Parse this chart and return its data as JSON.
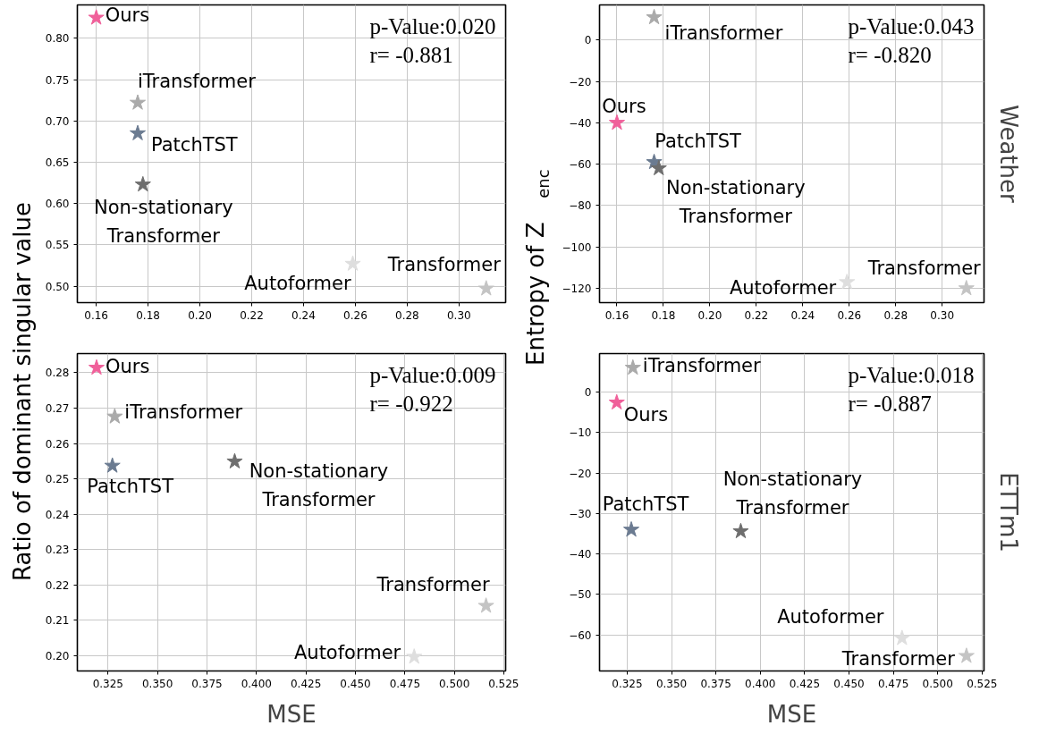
{
  "chart_data": [
    {
      "type": "scatter",
      "marker": "star",
      "grid": true,
      "ylabel": "Ratio of dominant singular value",
      "xlim": [
        0.1527,
        0.318
      ],
      "ylim": [
        0.48,
        0.8405
      ],
      "xticks": [
        {
          "value": 0.16,
          "label": "0.16"
        },
        {
          "value": 0.18,
          "label": "0.18"
        },
        {
          "value": 0.2,
          "label": "0.20"
        },
        {
          "value": 0.22,
          "label": "0.22"
        },
        {
          "value": 0.24,
          "label": "0.24"
        },
        {
          "value": 0.26,
          "label": "0.26"
        },
        {
          "value": 0.28,
          "label": "0.28"
        },
        {
          "value": 0.3,
          "label": "0.30"
        }
      ],
      "yticks": [
        {
          "value": 0.5,
          "label": "0.50"
        },
        {
          "value": 0.55,
          "label": "0.55"
        },
        {
          "value": 0.6,
          "label": "0.60"
        },
        {
          "value": 0.65,
          "label": "0.65"
        },
        {
          "value": 0.7,
          "label": "0.70"
        },
        {
          "value": 0.75,
          "label": "0.75"
        },
        {
          "value": 0.8,
          "label": "0.80"
        }
      ],
      "annotations": [
        "p-Value:0.020",
        "r= -0.881"
      ],
      "series": [
        {
          "name": "Ours",
          "color": "#f0609a",
          "x": [
            0.16
          ],
          "values": [
            0.825
          ]
        },
        {
          "name": "iTransformer",
          "color": "#aaaaaa",
          "x": [
            0.176
          ],
          "values": [
            0.722
          ]
        },
        {
          "name": "PatchTST",
          "color": "#6b7b91",
          "x": [
            0.176
          ],
          "values": [
            0.685
          ]
        },
        {
          "name": "Non-stationary\nTransformer",
          "color": "#6e6e6e",
          "x": [
            0.178
          ],
          "values": [
            0.623
          ]
        },
        {
          "name": "Autoformer",
          "color": "#dedede",
          "x": [
            0.259
          ],
          "values": [
            0.527
          ]
        },
        {
          "name": "Transformer",
          "color": "#c4c4c4",
          "x": [
            0.3105
          ],
          "values": [
            0.497
          ]
        }
      ]
    },
    {
      "type": "scatter",
      "marker": "star",
      "grid": true,
      "ylabel": "Entropy of Z$_{enc}$",
      "y2label": "Weather",
      "xlim": [
        0.1525,
        0.318
      ],
      "ylim": [
        -126.9,
        17
      ],
      "xticks": [
        {
          "value": 0.16,
          "label": "0.16"
        },
        {
          "value": 0.18,
          "label": "0.18"
        },
        {
          "value": 0.2,
          "label": "0.20"
        },
        {
          "value": 0.22,
          "label": "0.22"
        },
        {
          "value": 0.24,
          "label": "0.24"
        },
        {
          "value": 0.26,
          "label": "0.26"
        },
        {
          "value": 0.28,
          "label": "0.28"
        },
        {
          "value": 0.3,
          "label": "0.30"
        }
      ],
      "yticks": [
        {
          "value": -120,
          "label": "−120"
        },
        {
          "value": -100,
          "label": "−100"
        },
        {
          "value": -80,
          "label": "−80"
        },
        {
          "value": -60,
          "label": "−60"
        },
        {
          "value": -40,
          "label": "−40"
        },
        {
          "value": -20,
          "label": "−20"
        },
        0
      ],
      "annotations": [
        "p-Value:0.043",
        "r= -0.820"
      ],
      "series": [
        {
          "name": "Ours",
          "color": "#f0609a",
          "x": [
            0.16
          ],
          "values": [
            -40
          ]
        },
        {
          "name": "iTransformer",
          "color": "#aaaaaa",
          "x": [
            0.176
          ],
          "values": [
            11
          ]
        },
        {
          "name": "PatchTST",
          "color": "#6b7b91",
          "x": [
            0.176
          ],
          "values": [
            -59
          ]
        },
        {
          "name": "Non-stationary\nTransformer",
          "color": "#6e6e6e",
          "x": [
            0.178
          ],
          "values": [
            -62
          ]
        },
        {
          "name": "Autoformer",
          "color": "#dedede",
          "x": [
            0.259
          ],
          "values": [
            -117
          ]
        },
        {
          "name": "Transformer",
          "color": "#c4c4c4",
          "x": [
            0.3104
          ],
          "values": [
            -120
          ]
        }
      ]
    },
    {
      "type": "scatter",
      "marker": "star",
      "grid": true,
      "xlabel": "MSE",
      "xlim": [
        0.3095,
        0.5259
      ],
      "ylim": [
        0.1957,
        0.2854
      ],
      "xticks": [
        {
          "value": 0.325,
          "label": "0.325"
        },
        {
          "value": 0.35,
          "label": "0.350"
        },
        {
          "value": 0.375,
          "label": "0.375"
        },
        {
          "value": 0.4,
          "label": "0.400"
        },
        {
          "value": 0.425,
          "label": "0.425"
        },
        {
          "value": 0.45,
          "label": "0.450"
        },
        {
          "value": 0.475,
          "label": "0.475"
        },
        {
          "value": 0.5,
          "label": "0.500"
        },
        {
          "value": 0.525,
          "label": "0.525"
        }
      ],
      "yticks": [
        {
          "value": 0.2,
          "label": "0.20"
        },
        0.21,
        0.22,
        0.23,
        0.24,
        0.25,
        0.26,
        0.27,
        0.28
      ],
      "annotations": [
        "p-Value:0.009",
        "r= -0.922"
      ],
      "series": [
        {
          "name": "Ours",
          "color": "#f0609a",
          "x": [
            0.3192
          ],
          "values": [
            0.2814
          ]
        },
        {
          "name": "iTransformer",
          "color": "#aaaaaa",
          "x": [
            0.3284
          ],
          "values": [
            0.2676
          ]
        },
        {
          "name": "PatchTST",
          "color": "#6b7b91",
          "x": [
            0.3272
          ],
          "values": [
            0.2537
          ]
        },
        {
          "name": "Non-stationary\nTransformer",
          "color": "#6e6e6e",
          "x": [
            0.389
          ],
          "values": [
            0.2549
          ]
        },
        {
          "name": "Autoformer",
          "color": "#dedede",
          "x": [
            0.4797
          ],
          "values": [
            0.1997
          ]
        },
        {
          "name": "Transformer",
          "color": "#c4c4c4",
          "x": [
            0.516
          ],
          "values": [
            0.2141
          ]
        }
      ]
    },
    {
      "type": "scatter",
      "marker": "star",
      "grid": true,
      "xlabel": "MSE",
      "y2label": "ETTm1",
      "xlim": [
        0.3094,
        0.5261
      ],
      "ylim": [
        -68.9,
        9.5
      ],
      "xticks": [
        {
          "value": 0.325,
          "label": "0.325"
        },
        {
          "value": 0.35,
          "label": "0.350"
        },
        {
          "value": 0.375,
          "label": "0.375"
        },
        {
          "value": 0.4,
          "label": "0.400"
        },
        {
          "value": 0.425,
          "label": "0.425"
        },
        {
          "value": 0.45,
          "label": "0.450"
        },
        {
          "value": 0.475,
          "label": "0.475"
        },
        {
          "value": 0.5,
          "label": "0.500"
        },
        {
          "value": 0.525,
          "label": "0.525"
        }
      ],
      "yticks": [
        {
          "value": -60,
          "label": "−60"
        },
        {
          "value": -50,
          "label": "−50"
        },
        {
          "value": -40,
          "label": "−40"
        },
        {
          "value": -30,
          "label": "−30"
        },
        {
          "value": -20,
          "label": "−20"
        },
        {
          "value": -10,
          "label": "−10"
        },
        0
      ],
      "annotations": [
        "p-Value:0.018",
        "r= -0.887"
      ],
      "series": [
        {
          "name": "Ours",
          "color": "#f0609a",
          "x": [
            0.3191
          ],
          "values": [
            -2.6
          ]
        },
        {
          "name": "iTransformer",
          "color": "#aaaaaa",
          "x": [
            0.3282
          ],
          "values": [
            6
          ]
        },
        {
          "name": "PatchTST",
          "color": "#6b7b91",
          "x": [
            0.3273
          ],
          "values": [
            -34
          ]
        },
        {
          "name": "Non-stationary\nTransformer",
          "color": "#6e6e6e",
          "x": [
            0.389
          ],
          "values": [
            -34.4
          ]
        },
        {
          "name": "Autoformer",
          "color": "#dedede",
          "x": [
            0.4799
          ],
          "values": [
            -60.8
          ]
        },
        {
          "name": "Transformer",
          "color": "#c4c4c4",
          "x": [
            0.5162
          ],
          "values": [
            -65.2
          ]
        }
      ]
    }
  ]
}
